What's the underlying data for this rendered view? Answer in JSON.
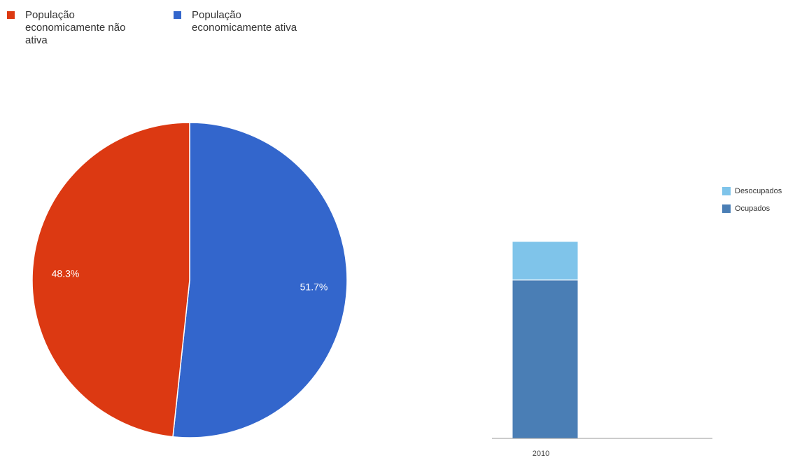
{
  "colors": {
    "nao_ativa": "#dc3912",
    "ativa": "#3366cc",
    "desocupados": "#7fc4ea",
    "ocupados": "#4a7eb5",
    "baseline": "#999999"
  },
  "chart_data": [
    {
      "type": "pie",
      "labels": [
        "População economicamente não ativa",
        "População economicamente ativa"
      ],
      "values": [
        48.3,
        51.7
      ],
      "data_labels": [
        "48.3%",
        "51.7%"
      ],
      "legend_position": "top-left"
    },
    {
      "type": "bar",
      "stacked": true,
      "categories": [
        "2010"
      ],
      "series": [
        {
          "name": "Ocupados",
          "values": [
            0.78
          ]
        },
        {
          "name": "Desocupados",
          "values": [
            0.19
          ]
        }
      ],
      "legend_position": "right"
    }
  ]
}
